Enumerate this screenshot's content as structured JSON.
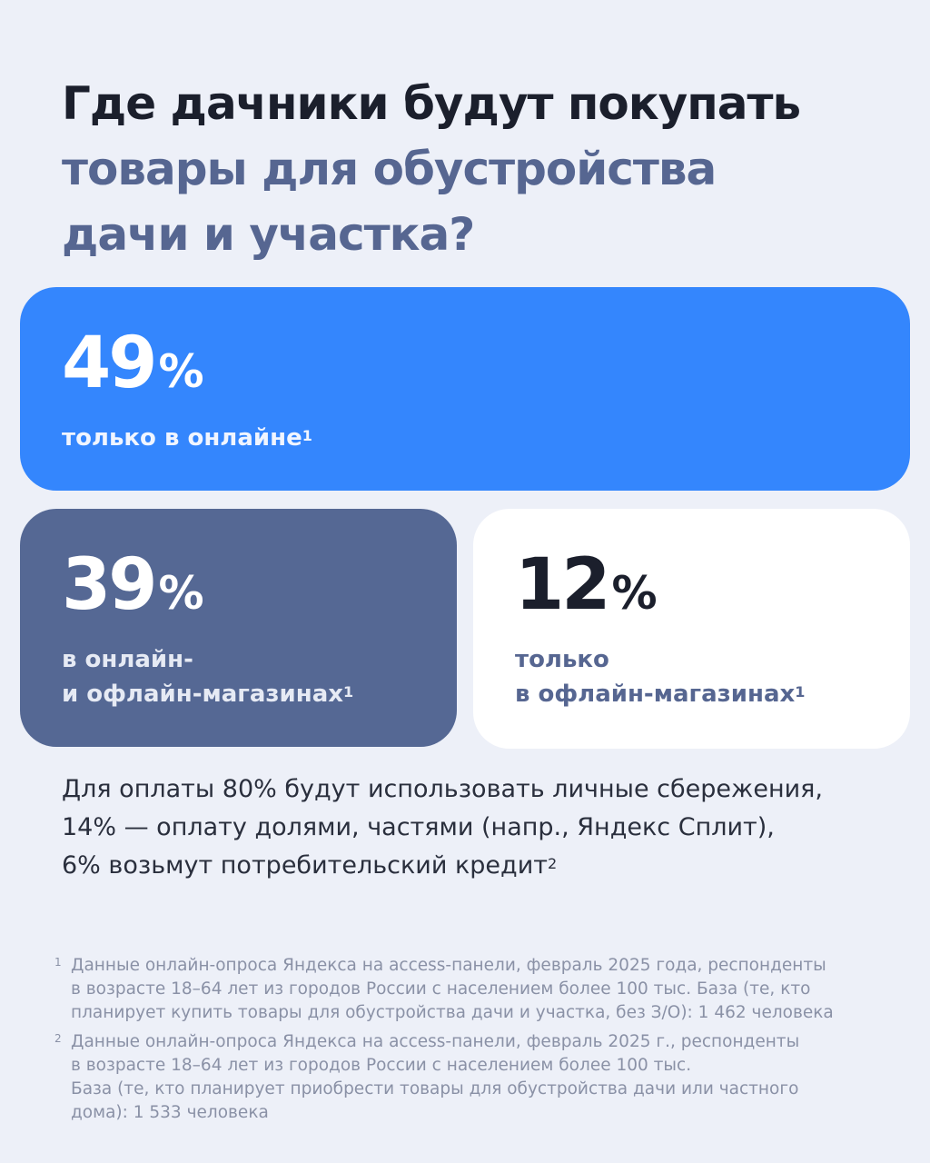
{
  "headline": {
    "line1": "Где дачники будут покупать",
    "line2": "товары для обустройства",
    "line3": "дачи и участка?"
  },
  "cards": {
    "online": {
      "value": "49",
      "unit": "%",
      "caption": "только в онлайне",
      "ref": "1"
    },
    "mixed": {
      "value": "39",
      "unit": "%",
      "caption_line1": "в онлайн-",
      "caption_line2": "и офлайн-магазинах",
      "ref": "1"
    },
    "offline": {
      "value": "12",
      "unit": "%",
      "caption_line1": "только",
      "caption_line2": "в офлайн-магазинах",
      "ref": "1"
    }
  },
  "payment": {
    "line1": "Для оплаты 80% будут использовать личные сбережения,",
    "line2": "14% — оплату долями, частями (напр., Яндекс Сплит),",
    "line3": "6% возьмут потребительский кредит",
    "ref": "2"
  },
  "footnotes": [
    {
      "num": "1",
      "lines": [
        "Данные онлайн-опроса Яндекса на access-панели, февраль 2025 года, респонденты",
        "в возрасте 18–64 лет из городов России с населением более 100 тыс. База (те, кто",
        "планирует купить товары для обустройства дачи и участка, без З/О): 1 462 человека"
      ]
    },
    {
      "num": "2",
      "lines": [
        "Данные онлайн-опроса Яндекса на access-панели, февраль 2025 г., респонденты",
        "в возрасте 18–64 лет из городов России с населением более 100 тыс.",
        "База (те, кто планирует приобрести товары для обустройства дачи или частного",
        "дома): 1 533 человека"
      ]
    }
  ],
  "colors": {
    "background": "#edf0f8",
    "online_card": "#3486fd",
    "mixed_card": "#556894",
    "offline_card": "#ffffff",
    "accent_text": "#566691"
  }
}
